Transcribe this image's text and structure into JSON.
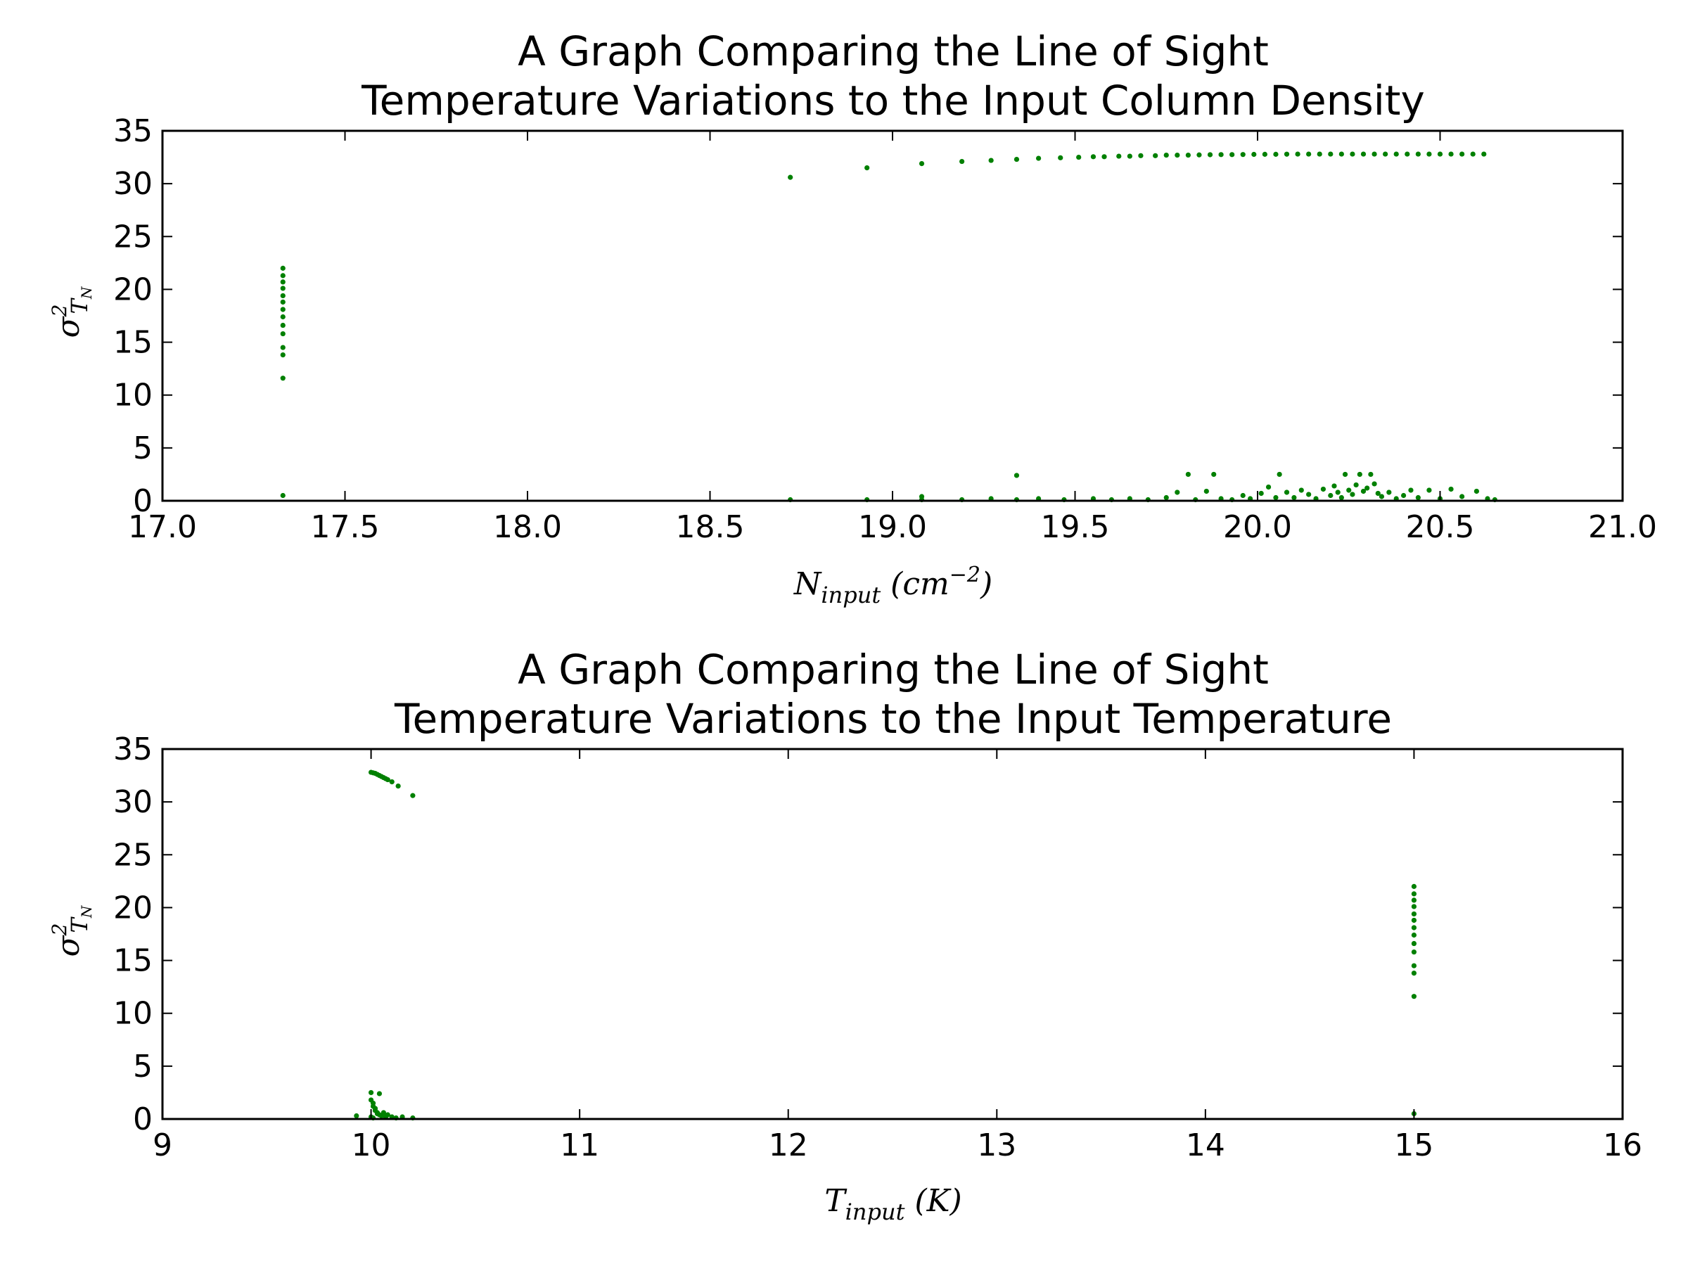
{
  "chart_data": [
    {
      "type": "scatter",
      "title_line1": "A Graph Comparing the Line of Sight",
      "title_line2": "Temperature Variations to the Input Column Density",
      "xlabel_main": "N",
      "xlabel_sub": "input",
      "xlabel_unit_pre": " (cm",
      "xlabel_unit_sup": "−2",
      "xlabel_unit_post": ")",
      "ylabel_main": "σ",
      "ylabel_sup": "2",
      "ylabel_sub": "T",
      "ylabel_subsub": "N",
      "xlim": [
        17.0,
        21.0
      ],
      "ylim": [
        0,
        35
      ],
      "xticks": [
        "17.0",
        "17.5",
        "18.0",
        "18.5",
        "19.0",
        "19.5",
        "20.0",
        "20.5",
        "21.0"
      ],
      "yticks": [
        "0",
        "5",
        "10",
        "15",
        "20",
        "25",
        "30",
        "35"
      ],
      "grid": false,
      "marker_color": "#008000",
      "series": [
        {
          "points": [
            [
              17.33,
              22.0
            ],
            [
              17.33,
              21.3
            ],
            [
              17.33,
              20.7
            ],
            [
              17.33,
              20.1
            ],
            [
              17.33,
              19.4
            ],
            [
              17.33,
              18.8
            ],
            [
              17.33,
              18.1
            ],
            [
              17.33,
              17.4
            ],
            [
              17.33,
              16.6
            ],
            [
              17.33,
              15.8
            ],
            [
              17.33,
              14.5
            ],
            [
              17.33,
              13.8
            ],
            [
              17.33,
              11.6
            ],
            [
              17.33,
              0.5
            ],
            [
              18.72,
              30.6
            ],
            [
              18.93,
              31.5
            ],
            [
              19.08,
              31.9
            ],
            [
              19.19,
              32.1
            ],
            [
              19.27,
              32.2
            ],
            [
              19.34,
              32.3
            ],
            [
              19.4,
              32.4
            ],
            [
              19.46,
              32.45
            ],
            [
              19.51,
              32.5
            ],
            [
              19.55,
              32.55
            ],
            [
              19.58,
              32.55
            ],
            [
              19.62,
              32.6
            ],
            [
              19.65,
              32.6
            ],
            [
              19.68,
              32.65
            ],
            [
              19.72,
              32.65
            ],
            [
              19.75,
              32.7
            ],
            [
              19.78,
              32.7
            ],
            [
              19.81,
              32.7
            ],
            [
              19.84,
              32.72
            ],
            [
              19.87,
              32.74
            ],
            [
              19.9,
              32.75
            ],
            [
              19.93,
              32.75
            ],
            [
              19.96,
              32.76
            ],
            [
              19.99,
              32.77
            ],
            [
              20.02,
              32.78
            ],
            [
              20.05,
              32.78
            ],
            [
              20.08,
              32.79
            ],
            [
              20.11,
              32.8
            ],
            [
              20.14,
              32.8
            ],
            [
              20.17,
              32.8
            ],
            [
              20.2,
              32.8
            ],
            [
              20.23,
              32.8
            ],
            [
              20.26,
              32.8
            ],
            [
              20.29,
              32.8
            ],
            [
              20.32,
              32.8
            ],
            [
              20.35,
              32.8
            ],
            [
              20.38,
              32.8
            ],
            [
              20.41,
              32.8
            ],
            [
              20.44,
              32.8
            ],
            [
              20.47,
              32.8
            ],
            [
              20.5,
              32.8
            ],
            [
              20.53,
              32.8
            ],
            [
              20.56,
              32.8
            ],
            [
              20.59,
              32.8
            ],
            [
              20.62,
              32.8
            ],
            [
              18.72,
              0.1
            ],
            [
              18.93,
              0.1
            ],
            [
              19.08,
              0.4
            ],
            [
              19.08,
              0.1
            ],
            [
              19.19,
              0.1
            ],
            [
              19.27,
              0.2
            ],
            [
              19.34,
              2.4
            ],
            [
              19.34,
              0.1
            ],
            [
              19.4,
              0.2
            ],
            [
              19.47,
              0.1
            ],
            [
              19.55,
              0.2
            ],
            [
              19.6,
              0.1
            ],
            [
              19.65,
              0.2
            ],
            [
              19.7,
              0.1
            ],
            [
              19.75,
              0.3
            ],
            [
              19.78,
              0.8
            ],
            [
              19.81,
              2.5
            ],
            [
              19.83,
              0.1
            ],
            [
              19.86,
              0.9
            ],
            [
              19.88,
              2.5
            ],
            [
              19.9,
              0.2
            ],
            [
              19.93,
              0.1
            ],
            [
              19.96,
              0.5
            ],
            [
              19.98,
              0.2
            ],
            [
              20.01,
              0.7
            ],
            [
              20.03,
              1.3
            ],
            [
              20.05,
              0.3
            ],
            [
              20.06,
              2.5
            ],
            [
              20.08,
              0.8
            ],
            [
              20.1,
              0.3
            ],
            [
              20.12,
              1.0
            ],
            [
              20.14,
              0.6
            ],
            [
              20.16,
              0.2
            ],
            [
              20.18,
              1.1
            ],
            [
              20.2,
              0.5
            ],
            [
              20.21,
              1.4
            ],
            [
              20.22,
              0.8
            ],
            [
              20.23,
              0.3
            ],
            [
              20.24,
              2.5
            ],
            [
              20.25,
              1.0
            ],
            [
              20.26,
              0.6
            ],
            [
              20.27,
              1.5
            ],
            [
              20.28,
              2.5
            ],
            [
              20.29,
              0.9
            ],
            [
              20.3,
              1.2
            ],
            [
              20.31,
              2.5
            ],
            [
              20.32,
              1.6
            ],
            [
              20.33,
              0.7
            ],
            [
              20.34,
              0.4
            ],
            [
              20.36,
              0.8
            ],
            [
              20.38,
              0.2
            ],
            [
              20.4,
              0.5
            ],
            [
              20.42,
              1.0
            ],
            [
              20.44,
              0.3
            ],
            [
              20.47,
              1.0
            ],
            [
              20.5,
              0.2
            ],
            [
              20.53,
              1.1
            ],
            [
              20.56,
              0.4
            ],
            [
              20.6,
              0.9
            ],
            [
              20.63,
              0.2
            ],
            [
              20.65,
              0.1
            ]
          ]
        }
      ]
    },
    {
      "type": "scatter",
      "title_line1": "A Graph Comparing the Line of Sight",
      "title_line2": "Temperature Variations to the Input Temperature",
      "xlabel_main": "T",
      "xlabel_sub": "input",
      "xlabel_unit_pre": " (K)",
      "xlabel_unit_sup": "",
      "xlabel_unit_post": "",
      "ylabel_main": "σ",
      "ylabel_sup": "2",
      "ylabel_sub": "T",
      "ylabel_subsub": "N",
      "xlim": [
        9,
        16
      ],
      "ylim": [
        0,
        35
      ],
      "xticks": [
        "9",
        "10",
        "11",
        "12",
        "13",
        "14",
        "15",
        "16"
      ],
      "yticks": [
        "0",
        "5",
        "10",
        "15",
        "20",
        "25",
        "30",
        "35"
      ],
      "grid": false,
      "marker_color": "#008000",
      "series": [
        {
          "points": [
            [
              10.0,
              32.8
            ],
            [
              10.01,
              32.75
            ],
            [
              10.02,
              32.7
            ],
            [
              10.03,
              32.6
            ],
            [
              10.04,
              32.5
            ],
            [
              10.05,
              32.4
            ],
            [
              10.06,
              32.3
            ],
            [
              10.07,
              32.2
            ],
            [
              10.08,
              32.1
            ],
            [
              10.1,
              31.9
            ],
            [
              10.13,
              31.5
            ],
            [
              10.2,
              30.6
            ],
            [
              10.0,
              2.5
            ],
            [
              10.04,
              2.4
            ],
            [
              10.0,
              1.8
            ],
            [
              10.01,
              1.5
            ],
            [
              10.01,
              1.2
            ],
            [
              10.02,
              1.0
            ],
            [
              10.02,
              0.8
            ],
            [
              10.03,
              0.6
            ],
            [
              10.03,
              0.5
            ],
            [
              10.04,
              0.4
            ],
            [
              10.05,
              0.3
            ],
            [
              10.06,
              0.6
            ],
            [
              10.07,
              0.2
            ],
            [
              10.08,
              0.4
            ],
            [
              10.1,
              0.2
            ],
            [
              10.12,
              0.1
            ],
            [
              10.15,
              0.2
            ],
            [
              10.2,
              0.1
            ],
            [
              9.93,
              0.3
            ],
            [
              10.0,
              0.2
            ],
            [
              10.01,
              0.1
            ],
            [
              15.0,
              22.0
            ],
            [
              15.0,
              21.3
            ],
            [
              15.0,
              20.7
            ],
            [
              15.0,
              20.1
            ],
            [
              15.0,
              19.4
            ],
            [
              15.0,
              18.8
            ],
            [
              15.0,
              18.1
            ],
            [
              15.0,
              17.4
            ],
            [
              15.0,
              16.6
            ],
            [
              15.0,
              15.8
            ],
            [
              15.0,
              14.5
            ],
            [
              15.0,
              13.8
            ],
            [
              15.0,
              11.6
            ],
            [
              15.0,
              0.5
            ]
          ]
        }
      ]
    }
  ]
}
